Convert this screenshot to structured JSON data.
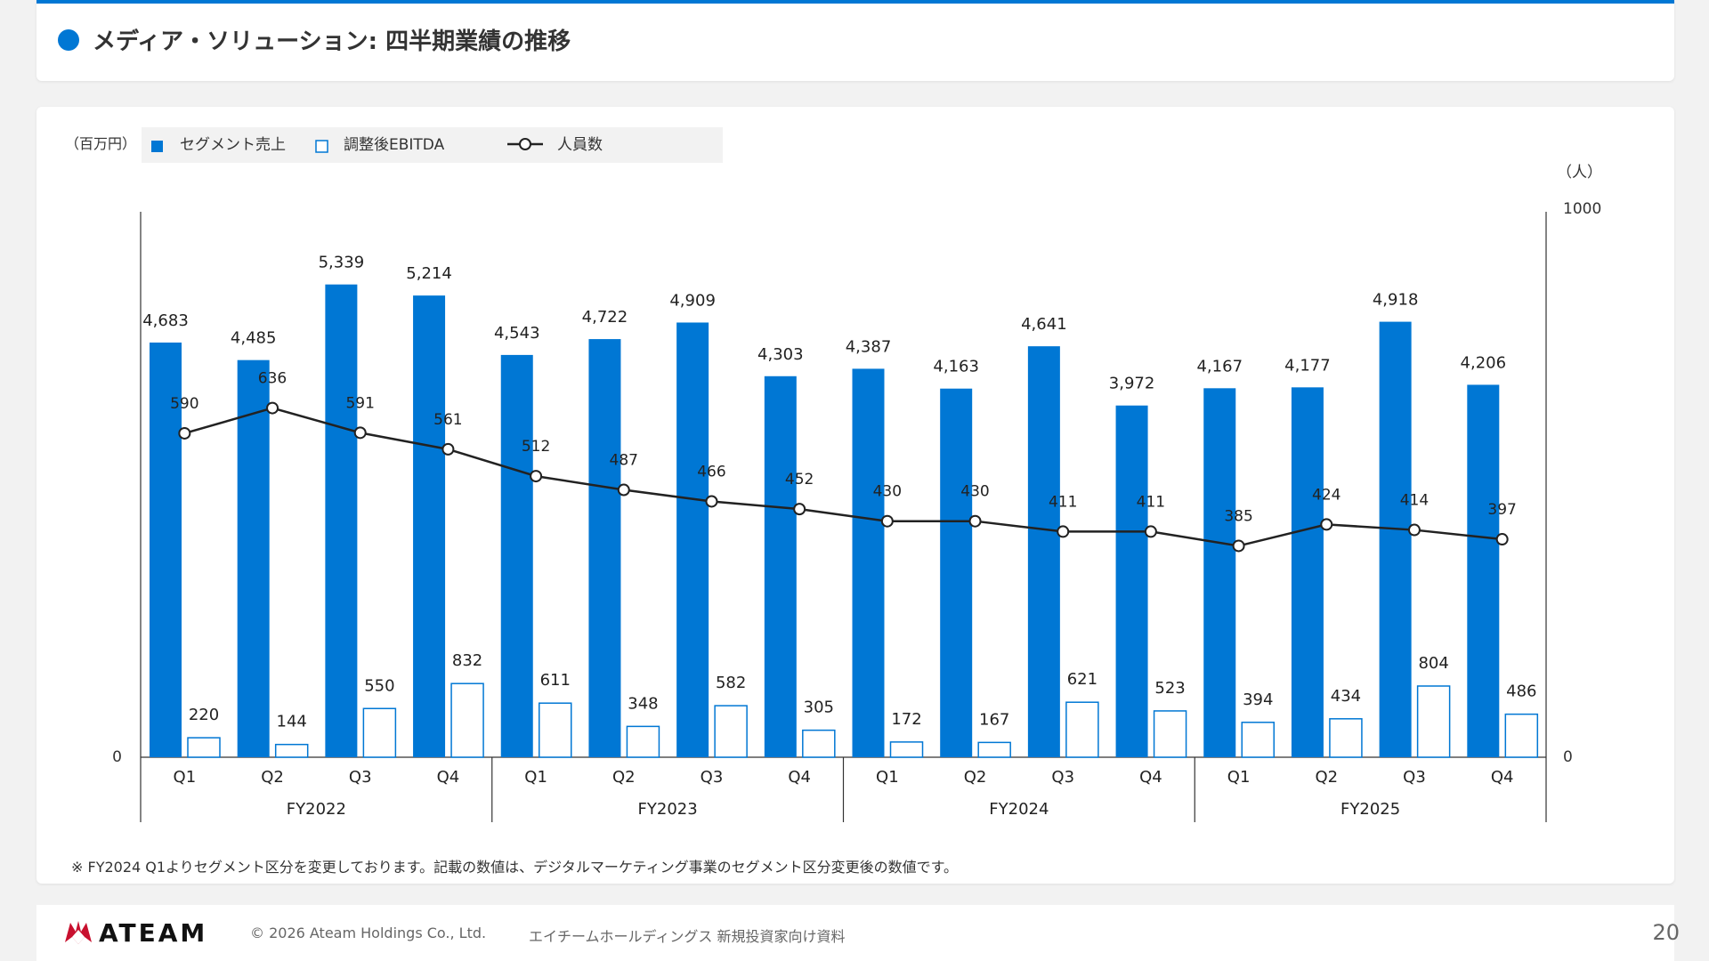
{
  "header": {
    "title": "メディア・ソリューション: 四半期業績の推移"
  },
  "colors": {
    "accent": "#0077d4",
    "line": "#222222"
  },
  "chart_data": {
    "type": "bar",
    "title": "",
    "left_unit": "（百万円）",
    "right_unit": "（人）",
    "left_axis": {
      "min": 0,
      "tick_min_label": "0"
    },
    "right_axis": {
      "min": 0,
      "max": 1000,
      "tick_max_label": "1000",
      "tick_min_label": "0"
    },
    "legend": [
      {
        "name": "セグメント売上",
        "kind": "filled-bar"
      },
      {
        "name": "調整後EBITDA",
        "kind": "outline-bar"
      },
      {
        "name": "人員数",
        "kind": "line"
      }
    ],
    "categories": [
      "Q1",
      "Q2",
      "Q3",
      "Q4",
      "Q1",
      "Q2",
      "Q3",
      "Q4",
      "Q1",
      "Q2",
      "Q3",
      "Q4",
      "Q1",
      "Q2",
      "Q3",
      "Q4"
    ],
    "groups": [
      {
        "label": "FY2022",
        "count": 4
      },
      {
        "label": "FY2023",
        "count": 4
      },
      {
        "label": "FY2024",
        "count": 4
      },
      {
        "label": "FY2025",
        "count": 4
      }
    ],
    "series": [
      {
        "name": "セグメント売上",
        "axis": "left",
        "values": [
          4683,
          4485,
          5339,
          5214,
          4543,
          4722,
          4909,
          4303,
          4387,
          4163,
          4641,
          3972,
          4167,
          4177,
          4918,
          4206
        ]
      },
      {
        "name": "調整後EBITDA",
        "axis": "left",
        "values": [
          220,
          144,
          550,
          832,
          611,
          348,
          582,
          305,
          172,
          167,
          621,
          523,
          394,
          434,
          804,
          486
        ]
      },
      {
        "name": "人員数",
        "axis": "right",
        "values": [
          590,
          636,
          591,
          561,
          512,
          487,
          466,
          452,
          430,
          430,
          411,
          411,
          385,
          424,
          414,
          397
        ]
      }
    ]
  },
  "note": "※ FY2024 Q1よりセグメント区分を変更しております。記載の数値は、デジタルマーケティング事業のセグメント区分変更後の数値です。",
  "footer": {
    "logo": "ATEAM",
    "copyright": "© 2026 Ateam Holdings Co., Ltd.",
    "doc_name": "エイチームホールディングス 新規投資家向け資料",
    "page": "20"
  }
}
